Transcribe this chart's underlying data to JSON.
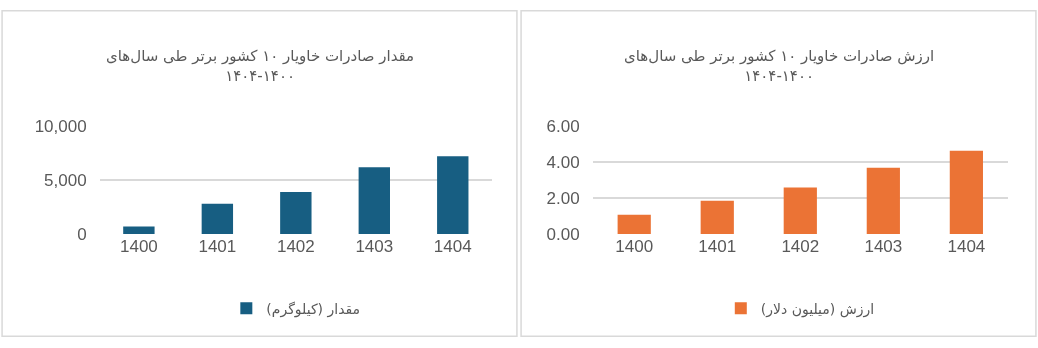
{
  "chart_data": [
    {
      "type": "bar",
      "title": "مقدار صادرات خاویار ۱۰ کشور برتر طی سال‌های\n۱۴۰۴-۱۴۰۰",
      "categories": [
        "1400",
        "1401",
        "1402",
        "1403",
        "1404"
      ],
      "series": [
        {
          "name": "مقدار (کیلوگرم)",
          "color": "#175e82",
          "values": [
            700,
            2800,
            3900,
            6200,
            7200
          ]
        }
      ],
      "ylim": [
        0,
        10000
      ],
      "yticks": [
        0,
        {
          "value": 5000,
          "label": "5,000"
        },
        {
          "value": 10000,
          "label": "10,000"
        }
      ],
      "grid": "y",
      "legend": "bottom"
    },
    {
      "type": "bar",
      "title": "ارزش صادرات خاویار ۱۰ کشور برتر طی سال‌های\n۱۴۰۴-۱۴۰۰",
      "categories": [
        "1400",
        "1401",
        "1402",
        "1403",
        "1404"
      ],
      "series": [
        {
          "name": "ارزش (میلیون دلار)",
          "color": "#eb7335",
          "values": [
            1.07,
            1.85,
            2.59,
            3.69,
            4.63
          ]
        }
      ],
      "ylim": [
        0,
        6
      ],
      "yticks": [
        {
          "value": 0,
          "label": "0.00"
        },
        {
          "value": 2,
          "label": "2.00"
        },
        {
          "value": 4,
          "label": "4.00"
        },
        {
          "value": 6,
          "label": "6.00"
        }
      ],
      "grid": "y",
      "legend": "bottom"
    }
  ]
}
